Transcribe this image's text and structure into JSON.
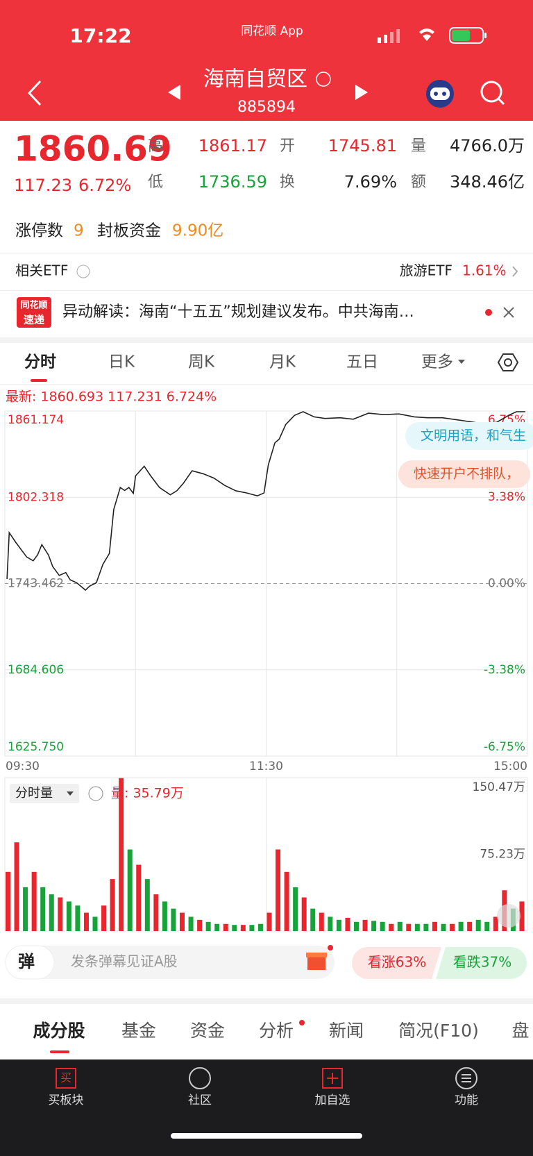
{
  "status_bar": {
    "time": "17:22",
    "app": "同花顺 App"
  },
  "nav": {
    "title": "海南自贸区",
    "code": "885894"
  },
  "quote": {
    "price": "1860.69",
    "change": "117.23",
    "change_pct": "6.72%",
    "stats": [
      {
        "label": "高",
        "value": "1861.17"
      },
      {
        "label": "开",
        "value": "1745.81"
      },
      {
        "label": "量",
        "value": "4766.0万"
      },
      {
        "label": "低",
        "value": "1736.59"
      },
      {
        "label": "换",
        "value": "7.69%"
      },
      {
        "label": "额",
        "value": "348.46亿"
      }
    ]
  },
  "limit_up": {
    "label": "涨停数",
    "count": "9",
    "fund_label": "封板资金",
    "fund": "9.90亿"
  },
  "etf": {
    "label": "相关ETF",
    "name": "旅游ETF",
    "change": "1.61%"
  },
  "news": {
    "logo_top": "同花顺",
    "logo_bottom": "速递",
    "text": "异动解读：海南“十五五”规划建议发布。中共海南…"
  },
  "tabs": [
    "分时",
    "日K",
    "周K",
    "月K",
    "五日",
    "更多"
  ],
  "chart_info": "最新: 1860.693 117.231 6.724%",
  "chart": {
    "type": "line",
    "color": "#222222",
    "x": [
      1,
      2,
      5,
      10,
      13,
      15,
      17,
      20,
      22,
      25,
      28,
      30,
      33,
      37,
      39,
      42,
      45,
      48,
      50,
      53,
      55,
      57,
      59,
      60,
      64,
      67,
      71,
      76,
      79,
      82,
      86,
      91,
      96,
      101,
      106,
      111,
      116,
      119,
      121,
      124,
      126,
      129,
      133,
      137,
      142,
      147,
      154,
      160,
      167,
      174,
      181,
      188,
      194,
      201,
      208,
      215,
      221,
      226,
      232,
      235,
      239
    ],
    "values": [
      1746.5,
      1778.2,
      1771.6,
      1761.6,
      1759,
      1763,
      1770,
      1763,
      1755,
      1749,
      1751,
      1746,
      1744,
      1739,
      1741.8,
      1744,
      1756.5,
      1764,
      1794,
      1809,
      1807,
      1809,
      1805,
      1816.9,
      1823.5,
      1816.9,
      1809,
      1804,
      1806.8,
      1811.9,
      1820.4,
      1818.4,
      1815.4,
      1810.4,
      1806.8,
      1805.3,
      1803.3,
      1805.3,
      1824.4,
      1839.5,
      1842,
      1852,
      1858.2,
      1860.7,
      1857.2,
      1856.1,
      1856.6,
      1855.6,
      1859.7,
      1858.7,
      1859.2,
      1857.2,
      1856.6,
      1856.6,
      1855.1,
      1853.6,
      1852.1,
      1853.6,
      1858.7,
      1860.7,
      1860.7
    ],
    "xlim": [
      0,
      240
    ],
    "xticks": [
      {
        "value": 0,
        "label": "09:30"
      },
      {
        "value": 120,
        "label": "11:30"
      },
      {
        "value": 240,
        "label": "15:00"
      }
    ],
    "ylim": [
      1625.75,
      1861.174
    ],
    "yticks": [
      {
        "value": 1625.75,
        "label": "1625.750"
      },
      1684.606,
      1743.462,
      1802.318,
      1861.174
    ],
    "y2lim": [
      -6.75,
      6.75
    ],
    "y2ticks": [
      {
        "value": -6.75,
        "label": "-6.75%"
      },
      {
        "value": -3.38,
        "label": "-3.38%"
      },
      {
        "value": 0,
        "label": "0.00%"
      },
      {
        "value": 3.38,
        "label": "3.38%"
      },
      {
        "value": 6.75,
        "label": "6.75%"
      }
    ],
    "grid": true,
    "overlays": [
      "文明用语，和气生",
      "快速开户不排队，"
    ]
  },
  "volume_chart": {
    "type": "bar",
    "label": "分时量",
    "current": "量: 35.79万",
    "x": [
      0,
      4,
      8,
      12,
      16,
      20,
      24,
      28,
      32,
      36,
      40,
      44,
      48,
      52,
      56,
      60,
      64,
      68,
      72,
      76,
      80,
      84,
      88,
      92,
      96,
      100,
      104,
      108,
      112,
      116,
      120,
      124,
      128,
      132,
      136,
      140,
      144,
      148,
      152,
      156,
      160,
      164,
      168,
      172,
      176,
      180,
      184,
      188,
      192,
      196,
      200,
      204,
      208,
      212,
      216,
      220,
      224,
      228,
      232,
      236
    ],
    "values": [
      58,
      87,
      43,
      58,
      43,
      36,
      33,
      29,
      25,
      18,
      14,
      25,
      51,
      150,
      80,
      65,
      51,
      36,
      29,
      22,
      18,
      14,
      11,
      9,
      7,
      7,
      6,
      6,
      6,
      7,
      18,
      80,
      58,
      43,
      33,
      22,
      18,
      14,
      11,
      13,
      9,
      11,
      10,
      9,
      7,
      9,
      7,
      7,
      7,
      9,
      7,
      7,
      9,
      9,
      11,
      9,
      14,
      40,
      22,
      29
    ],
    "colors": [
      "#e8262e",
      "#e8262e",
      "#17a23a",
      "#e8262e",
      "#17a23a",
      "#17a23a",
      "#e8262e",
      "#17a23a",
      "#17a23a",
      "#e8262e",
      "#17a23a",
      "#e8262e",
      "#e8262e",
      "#e8262e",
      "#17a23a",
      "#e8262e",
      "#17a23a",
      "#e8262e",
      "#17a23a",
      "#17a23a",
      "#e8262e",
      "#17a23a",
      "#e8262e",
      "#17a23a",
      "#17a23a",
      "#e8262e",
      "#17a23a",
      "#e8262e",
      "#17a23a",
      "#17a23a",
      "#e8262e",
      "#e8262e",
      "#e8262e",
      "#17a23a",
      "#e8262e",
      "#17a23a",
      "#e8262e",
      "#17a23a",
      "#17a23a",
      "#e8262e",
      "#17a23a",
      "#e8262e",
      "#17a23a",
      "#17a23a",
      "#e8262e",
      "#17a23a",
      "#e8262e",
      "#17a23a",
      "#17a23a",
      "#e8262e",
      "#17a23a",
      "#e8262e",
      "#17a23a",
      "#e8262e",
      "#17a23a",
      "#17a23a",
      "#e8262e",
      "#e8262e",
      "#17a23a",
      "#e8262e"
    ],
    "xlim": [
      0,
      240
    ],
    "ylim": [
      0,
      150.47
    ],
    "yticks": [
      {
        "value": 75.23,
        "label": "75.23万"
      },
      {
        "value": 150.47,
        "label": "150.47万"
      }
    ]
  },
  "danmaku": {
    "badge": "弹",
    "placeholder": "发条弹幕见证A股"
  },
  "sentiment": {
    "up": "看涨63%",
    "down": "看跌37%"
  },
  "bottom_tabs": [
    "成分股",
    "基金",
    "资金",
    "分析",
    "新闻",
    "简况(F10)",
    "盘"
  ],
  "toolbar": {
    "buy_icon": "买",
    "items": [
      "买板块",
      "社区",
      "加自选",
      "功能"
    ]
  }
}
